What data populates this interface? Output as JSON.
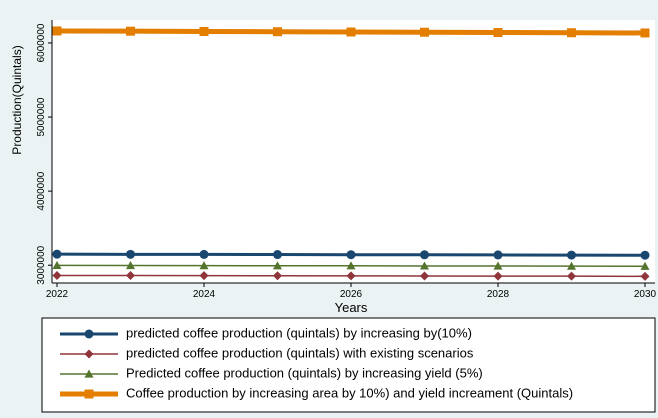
{
  "chart_data": {
    "type": "line",
    "x_label": "Years",
    "y_label": "Production(Quintals)",
    "x": [
      2022,
      2023,
      2024,
      2025,
      2026,
      2027,
      2028,
      2029,
      2030
    ],
    "xlim": [
      2022,
      2030
    ],
    "xticks": [
      2022,
      2024,
      2026,
      2028,
      2030
    ],
    "ylim": [
      2760000,
      6310000
    ],
    "yticks": [
      3000000,
      4000000,
      5000000,
      6000000
    ],
    "legend_position": "bottom",
    "series": [
      {
        "name": "predicted coffee production (quintals) by increasing by(10%)",
        "color": "#1a476f",
        "marker": "circle",
        "width": 3,
        "values": [
          3149000,
          3147000,
          3146000,
          3144000,
          3142000,
          3141000,
          3139000,
          3137000,
          3135000
        ]
      },
      {
        "name": "predicted coffee production (quintals) with existing scenarios",
        "color": "#90353b",
        "marker": "diamond",
        "width": 1.5,
        "values": [
          2862000,
          2861000,
          2859000,
          2858000,
          2856000,
          2855000,
          2853000,
          2852000,
          2850000
        ]
      },
      {
        "name": "Predicted coffee production (quintals) by increasing yield (5%)",
        "color": "#55752f",
        "marker": "triangle",
        "width": 1.5,
        "values": [
          2998000,
          2996000,
          2995000,
          2993000,
          2992000,
          2990000,
          2989000,
          2987000,
          2986000
        ]
      },
      {
        "name": "Coffee production by increasing area by 10%) and yield increament (Quintals)",
        "color": "#e37e00",
        "marker": "square",
        "width": 5,
        "values": [
          6162000,
          6159000,
          6155000,
          6152000,
          6148000,
          6145000,
          6141000,
          6138000,
          6135000
        ]
      }
    ]
  }
}
